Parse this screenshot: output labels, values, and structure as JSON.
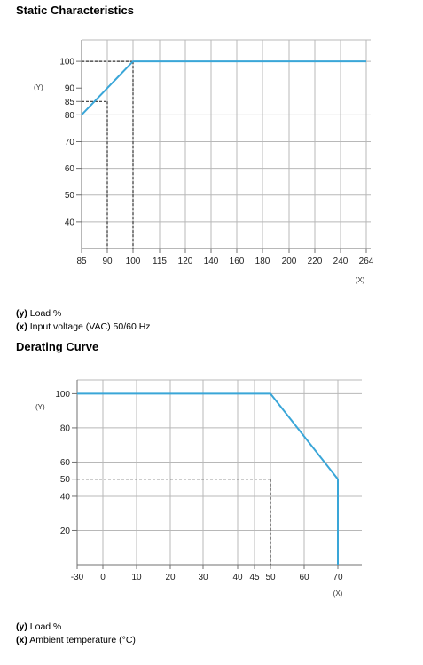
{
  "chart_data": [
    {
      "type": "line",
      "title": "Static Characteristics",
      "y_axis_marker": "(Y)",
      "x_axis_marker": "(X)",
      "x_ticks": [
        "85",
        "90",
        "100",
        "115",
        "120",
        "140",
        "160",
        "180",
        "200",
        "220",
        "240",
        "264"
      ],
      "y_ticks": [
        100,
        90,
        85,
        80,
        70,
        60,
        50,
        40
      ],
      "series": [
        {
          "x": [
            "85",
            "100",
            "264"
          ],
          "y": [
            80,
            100,
            100
          ]
        }
      ],
      "guides": [
        {
          "x": "90",
          "y": 85
        },
        {
          "x": "100",
          "y": 100
        }
      ],
      "ylim": [
        30,
        108
      ],
      "grid": true,
      "legend": {
        "y_label": "Load %",
        "x_label": "Input voltage (VAC) 50/60 Hz",
        "y_key": "(y)",
        "x_key": "(x)"
      }
    },
    {
      "type": "line",
      "title": "Derating Curve",
      "y_axis_marker": "(Y)",
      "x_axis_marker": "(X)",
      "x_ticks": [
        -30,
        0,
        10,
        20,
        30,
        40,
        45,
        50,
        60,
        70
      ],
      "y_ticks": [
        100,
        80,
        60,
        50,
        40,
        20
      ],
      "series": [
        {
          "x": [
            -30,
            50,
            70,
            70
          ],
          "y": [
            100,
            100,
            50,
            0
          ]
        }
      ],
      "guides": [
        {
          "x": 50,
          "y": 50
        }
      ],
      "ylim": [
        0,
        108
      ],
      "grid": true,
      "legend": {
        "y_label": "Load %",
        "x_label": "Ambient temperature (°C)",
        "y_key": "(y)",
        "x_key": "(x)"
      }
    }
  ]
}
